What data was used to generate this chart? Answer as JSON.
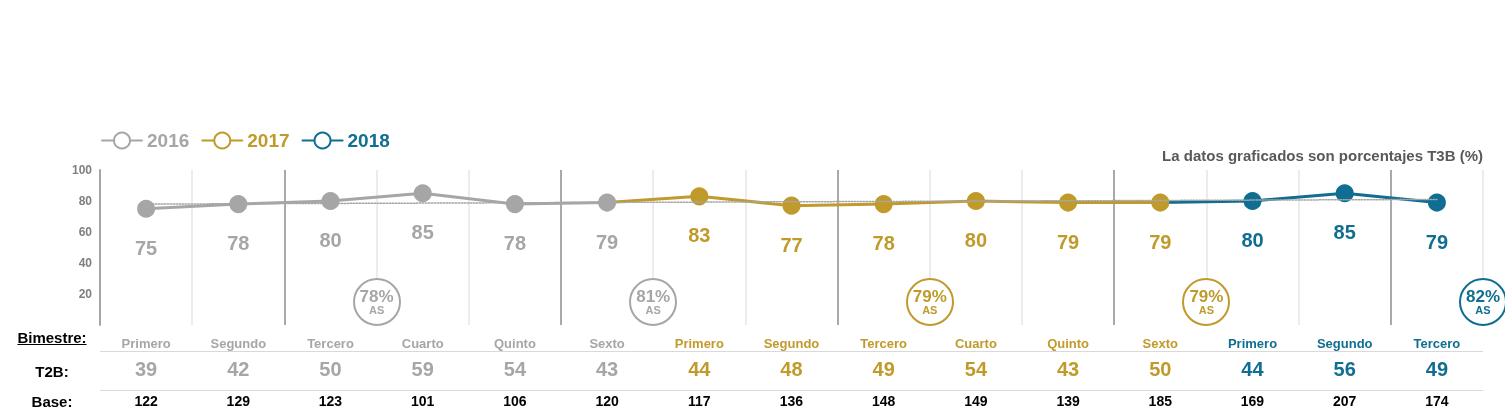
{
  "chart_data": {
    "type": "line",
    "subtitle": "La datos graficados son porcentajes T3B (%)",
    "categories": [
      "Primero",
      "Segundo",
      "Tercero",
      "Cuarto",
      "Quinto",
      "Sexto",
      "Primero",
      "Segundo",
      "Tercero",
      "Cuarto",
      "Quinto",
      "Sexto",
      "Primero",
      "Segundo",
      "Tercero"
    ],
    "series": [
      {
        "name": "2016",
        "color": "#a6a6a6",
        "marker": "circle",
        "values": [
          75,
          78,
          80,
          85,
          78,
          79,
          null,
          null,
          null,
          null,
          null,
          null,
          null,
          null,
          null
        ],
        "value_labels": [
          "75",
          "78",
          "80",
          "85",
          "78",
          "79",
          null,
          null,
          null,
          null,
          null,
          null,
          null,
          null,
          null
        ]
      },
      {
        "name": "2017",
        "color": "#c09a2a",
        "marker": "circle",
        "values": [
          null,
          null,
          null,
          null,
          null,
          79,
          83,
          77,
          78,
          80,
          79,
          79,
          null,
          null,
          null
        ],
        "value_labels": [
          null,
          null,
          null,
          null,
          null,
          null,
          "83",
          "77",
          "78",
          "80",
          "79",
          "79",
          null,
          null,
          null
        ]
      },
      {
        "name": "2018",
        "color": "#0f6e91",
        "marker": "circle",
        "values": [
          null,
          null,
          null,
          null,
          null,
          null,
          null,
          null,
          null,
          null,
          null,
          79,
          80,
          85,
          79
        ],
        "value_labels": [
          null,
          null,
          null,
          null,
          null,
          null,
          null,
          null,
          null,
          null,
          null,
          null,
          "80",
          "85",
          "79"
        ]
      },
      {
        "color": "#a6a6a6",
        "line_style": "dotted",
        "values": [
          78,
          null,
          null,
          null,
          null,
          null,
          null,
          null,
          null,
          null,
          null,
          null,
          null,
          null,
          81
        ]
      }
    ],
    "ylim": [
      0,
      100
    ],
    "yticks": [
      20,
      40,
      60,
      80,
      100
    ],
    "grid": "x",
    "legend": "top left",
    "line_style": "solid",
    "annotations": [
      "Bimestre:",
      "T2B:",
      "Base:",
      "39",
      "42",
      "50",
      "59",
      "54",
      "43",
      "44",
      "48",
      "49",
      "54",
      "43",
      "50",
      "44",
      "56",
      "49",
      "122",
      "129",
      "123",
      "101",
      "106",
      "120",
      "117",
      "136",
      "148",
      "149",
      "139",
      "185",
      "169",
      "207",
      "174",
      "78% AS",
      "81% AS",
      "79% AS",
      "79% AS",
      "82% AS"
    ]
  }
}
